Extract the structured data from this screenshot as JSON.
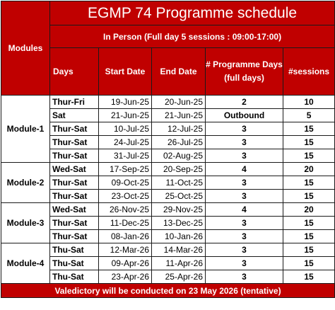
{
  "title": "EGMP 74 Programme schedule",
  "subtitle": "In Person (Full day 5 sessions : 09:00-17:00)",
  "headers": {
    "modules": "Modules",
    "days": "Days",
    "start_date": "Start Date",
    "end_date": "End Date",
    "programme_days": "# Programme Days (full days)",
    "sessions": "#sessions"
  },
  "modules": [
    {
      "name": "Module-1",
      "rows": [
        {
          "days": "Thur-Fri",
          "start": "19-Jun-25",
          "end": "20-Jun-25",
          "pdays": "2",
          "sessions": "10"
        },
        {
          "days": "Sat",
          "start": "21-Jun-25",
          "end": "21-Jun-25",
          "pdays": "Outbound",
          "sessions": "5"
        },
        {
          "days": "Thur-Sat",
          "start": "10-Jul-25",
          "end": "12-Jul-25",
          "pdays": "3",
          "sessions": "15"
        },
        {
          "days": "Thur-Sat",
          "start": "24-Jul-25",
          "end": "26-Jul-25",
          "pdays": "3",
          "sessions": "15"
        },
        {
          "days": "Thur-Sat",
          "start": "31-Jul-25",
          "end": "02-Aug-25",
          "pdays": "3",
          "sessions": "15"
        }
      ]
    },
    {
      "name": "Module-2",
      "rows": [
        {
          "days": "Wed-Sat",
          "start": "17-Sep-25",
          "end": "20-Sep-25",
          "pdays": "4",
          "sessions": "20"
        },
        {
          "days": "Thur-Sat",
          "start": "09-Oct-25",
          "end": "11-Oct-25",
          "pdays": "3",
          "sessions": "15"
        },
        {
          "days": "Thur-Sat",
          "start": "23-Oct-25",
          "end": "25-Oct-25",
          "pdays": "3",
          "sessions": "15"
        }
      ]
    },
    {
      "name": "Module-3",
      "rows": [
        {
          "days": "Wed-Sat",
          "start": "26-Nov-25",
          "end": "29-Nov-25",
          "pdays": "4",
          "sessions": "20"
        },
        {
          "days": "Thur-Sat",
          "start": "11-Dec-25",
          "end": "13-Dec-25",
          "pdays": "3",
          "sessions": "15"
        },
        {
          "days": "Thur-Sat",
          "start": "08-Jan-26",
          "end": "10-Jan-26",
          "pdays": "3",
          "sessions": "15"
        }
      ]
    },
    {
      "name": "Module-4",
      "rows": [
        {
          "days": "Thu-Sat",
          "start": "12-Mar-26",
          "end": "14-Mar-26",
          "pdays": "3",
          "sessions": "15"
        },
        {
          "days": "Thu-Sat",
          "start": "09-Apr-26",
          "end": "11-Apr-26",
          "pdays": "3",
          "sessions": "15"
        },
        {
          "days": "Thu-Sat",
          "start": "23-Apr-26",
          "end": "25-Apr-26",
          "pdays": "3",
          "sessions": "15"
        }
      ]
    }
  ],
  "footer": "Valedictory will be conducted on 23 May 2026 (tentative)",
  "colors": {
    "header_red": "#c00000",
    "header_text": "#ffffff",
    "border": "#1a1a1a"
  }
}
